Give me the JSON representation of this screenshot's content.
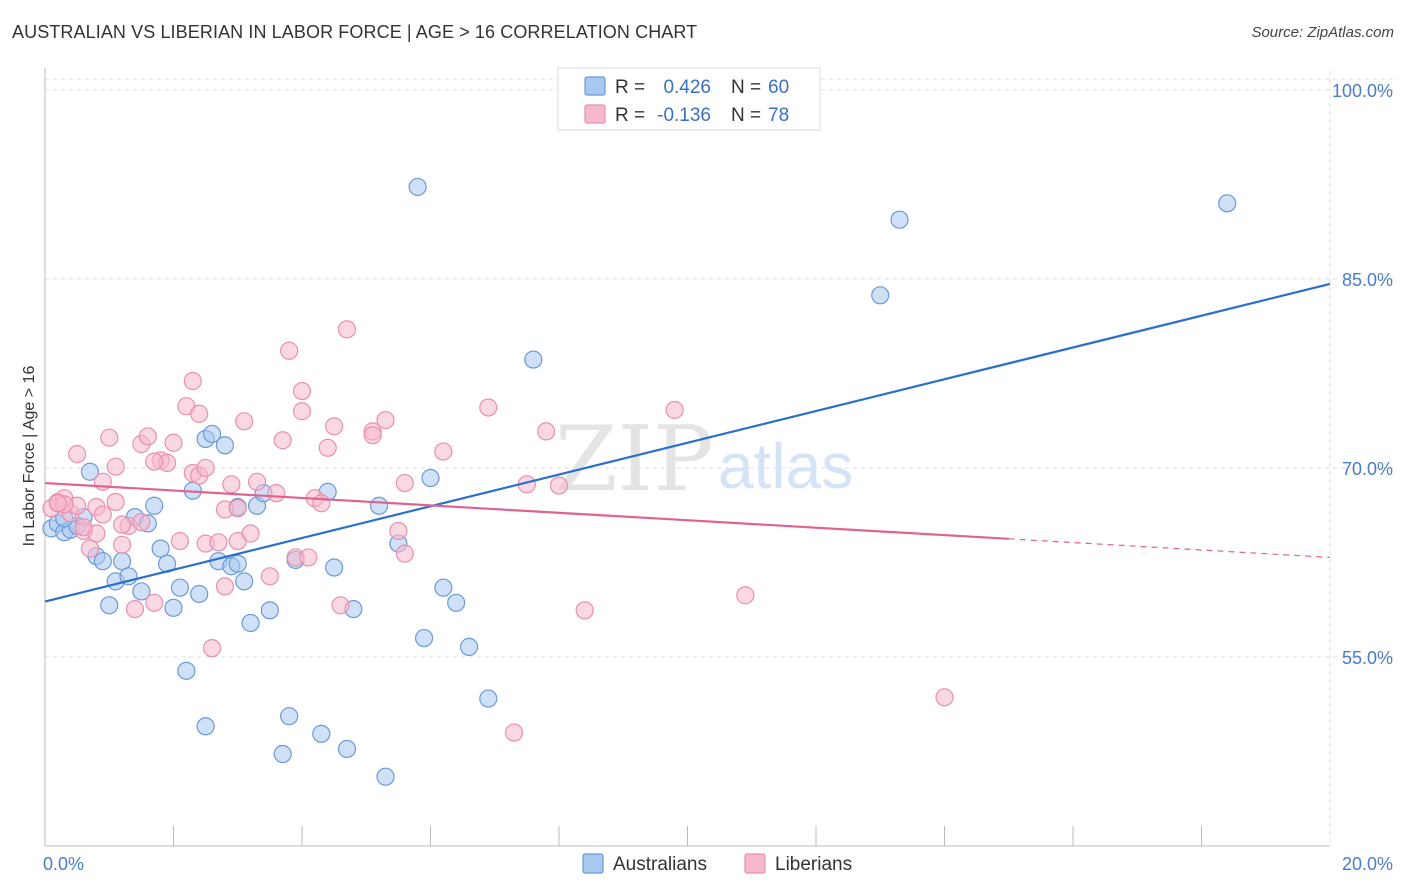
{
  "title": "AUSTRALIAN VS LIBERIAN IN LABOR FORCE | AGE > 16 CORRELATION CHART",
  "source": "Source: ZipAtlas.com",
  "watermark": {
    "zip": "ZIP",
    "atlas": "atlas"
  },
  "colors": {
    "blue_fill": "#a9c8f0",
    "blue_stroke": "#6a9ad8",
    "blue_line": "#2a6fcc",
    "pink_fill": "#f6b8cc",
    "pink_stroke": "#e890ae",
    "pink_line": "#e0628e",
    "grid": "#dddddd",
    "tick_text": "#4a7cc8"
  },
  "legend": {
    "rows": [
      {
        "r_label": "R =",
        "r_value": "0.426",
        "n_label": "N =",
        "n_value": "60",
        "series": "blue"
      },
      {
        "r_label": "R =",
        "r_value": "-0.136",
        "n_label": "N =",
        "n_value": "78",
        "series": "pink"
      }
    ]
  },
  "bottom_legend": [
    {
      "label": "Australians",
      "series": "blue"
    },
    {
      "label": "Liberians",
      "series": "pink"
    }
  ],
  "chart_data": {
    "type": "scatter",
    "title": "AUSTRALIAN VS LIBERIAN IN LABOR FORCE | AGE > 16 CORRELATION CHART",
    "xlabel": "",
    "ylabel": "In Labor Force | Age > 16",
    "xlim": [
      0,
      20
    ],
    "ylim": [
      40,
      101.5
    ],
    "x_tick_labels": [
      {
        "value": 0,
        "label": "0.0%"
      },
      {
        "value": 20,
        "label": "20.0%"
      }
    ],
    "y_tick_labels": [
      {
        "value": 100,
        "label": "100.0%"
      },
      {
        "value": 85,
        "label": "85.0%"
      },
      {
        "value": 70,
        "label": "70.0%"
      },
      {
        "value": 55,
        "label": "55.0%"
      }
    ],
    "x_minor_ticks": [
      2,
      4,
      6,
      8,
      10,
      12,
      14,
      16,
      18
    ],
    "series": [
      {
        "name": "Australians",
        "color": "blue",
        "trend": {
          "x0": 0,
          "y0": 59.4,
          "x1": 20,
          "y1": 84.6,
          "dashed_from": null
        },
        "points": [
          [
            0.1,
            65.2
          ],
          [
            0.2,
            65.6
          ],
          [
            0.3,
            64.9
          ],
          [
            0.4,
            65.1
          ],
          [
            0.5,
            65.4
          ],
          [
            0.6,
            66.1
          ],
          [
            0.7,
            69.7
          ],
          [
            0.8,
            63.0
          ],
          [
            0.9,
            62.6
          ],
          [
            1.0,
            59.1
          ],
          [
            1.1,
            61.0
          ],
          [
            1.2,
            62.6
          ],
          [
            1.3,
            61.4
          ],
          [
            1.4,
            66.1
          ],
          [
            1.5,
            60.2
          ],
          [
            1.6,
            65.6
          ],
          [
            1.7,
            67.0
          ],
          [
            1.8,
            63.6
          ],
          [
            1.9,
            62.4
          ],
          [
            2.0,
            58.9
          ],
          [
            2.1,
            60.5
          ],
          [
            2.2,
            53.9
          ],
          [
            2.3,
            68.2
          ],
          [
            2.4,
            60.0
          ],
          [
            2.5,
            49.5
          ],
          [
            2.5,
            72.3
          ],
          [
            2.6,
            72.7
          ],
          [
            2.7,
            62.6
          ],
          [
            2.8,
            71.8
          ],
          [
            2.9,
            62.2
          ],
          [
            3.0,
            66.9
          ],
          [
            3.0,
            62.4
          ],
          [
            3.1,
            61.0
          ],
          [
            3.2,
            57.7
          ],
          [
            3.3,
            67.0
          ],
          [
            3.4,
            68.0
          ],
          [
            3.5,
            58.7
          ],
          [
            3.7,
            47.3
          ],
          [
            3.8,
            50.3
          ],
          [
            3.9,
            62.7
          ],
          [
            4.3,
            48.9
          ],
          [
            4.4,
            68.1
          ],
          [
            4.5,
            62.1
          ],
          [
            4.7,
            47.7
          ],
          [
            4.8,
            58.8
          ],
          [
            5.2,
            67.0
          ],
          [
            5.3,
            45.5
          ],
          [
            5.5,
            64.0
          ],
          [
            5.8,
            92.3
          ],
          [
            5.9,
            56.5
          ],
          [
            6.0,
            69.2
          ],
          [
            6.2,
            60.5
          ],
          [
            6.4,
            59.3
          ],
          [
            6.6,
            55.8
          ],
          [
            6.9,
            51.7
          ],
          [
            7.6,
            78.6
          ],
          [
            13.0,
            83.7
          ],
          [
            13.3,
            89.7
          ],
          [
            18.4,
            91.0
          ],
          [
            0.3,
            66.0
          ]
        ]
      },
      {
        "name": "Liberians",
        "color": "pink",
        "trend": {
          "x0": 0,
          "y0": 68.8,
          "x1": 20,
          "y1": 62.9,
          "dashed_from": 15.0
        },
        "points": [
          [
            0.1,
            66.8
          ],
          [
            0.2,
            67.3
          ],
          [
            0.3,
            67.6
          ],
          [
            0.4,
            66.4
          ],
          [
            0.5,
            67.0
          ],
          [
            0.5,
            71.1
          ],
          [
            0.6,
            65.0
          ],
          [
            0.7,
            63.6
          ],
          [
            0.8,
            66.9
          ],
          [
            0.8,
            64.8
          ],
          [
            0.9,
            68.9
          ],
          [
            1.0,
            72.4
          ],
          [
            1.1,
            70.1
          ],
          [
            1.2,
            63.9
          ],
          [
            1.3,
            65.4
          ],
          [
            1.4,
            58.8
          ],
          [
            1.5,
            65.7
          ],
          [
            1.5,
            71.9
          ],
          [
            1.6,
            72.5
          ],
          [
            1.7,
            59.3
          ],
          [
            1.8,
            70.6
          ],
          [
            1.9,
            70.4
          ],
          [
            2.0,
            72.0
          ],
          [
            2.1,
            64.2
          ],
          [
            2.2,
            74.9
          ],
          [
            2.3,
            69.6
          ],
          [
            2.3,
            76.9
          ],
          [
            2.4,
            69.4
          ],
          [
            2.4,
            74.3
          ],
          [
            2.5,
            70.0
          ],
          [
            2.5,
            64.0
          ],
          [
            2.6,
            55.7
          ],
          [
            2.8,
            66.7
          ],
          [
            2.8,
            60.6
          ],
          [
            3.0,
            66.8
          ],
          [
            3.0,
            64.2
          ],
          [
            3.1,
            73.7
          ],
          [
            3.2,
            64.8
          ],
          [
            3.3,
            68.9
          ],
          [
            3.5,
            61.4
          ],
          [
            3.7,
            72.2
          ],
          [
            3.8,
            79.3
          ],
          [
            3.9,
            62.9
          ],
          [
            4.0,
            74.5
          ],
          [
            4.0,
            76.1
          ],
          [
            4.2,
            67.6
          ],
          [
            4.3,
            67.2
          ],
          [
            4.4,
            71.6
          ],
          [
            4.5,
            73.3
          ],
          [
            4.6,
            59.1
          ],
          [
            4.7,
            81.0
          ],
          [
            5.1,
            72.9
          ],
          [
            5.1,
            72.6
          ],
          [
            5.5,
            65.0
          ],
          [
            5.6,
            63.2
          ],
          [
            5.6,
            68.8
          ],
          [
            6.2,
            71.3
          ],
          [
            6.9,
            74.8
          ],
          [
            7.3,
            49.0
          ],
          [
            7.5,
            68.7
          ],
          [
            7.8,
            72.9
          ],
          [
            8.0,
            68.6
          ],
          [
            8.4,
            58.7
          ],
          [
            9.8,
            74.6
          ],
          [
            10.9,
            59.9
          ],
          [
            14.0,
            51.8
          ],
          [
            0.3,
            67.1
          ],
          [
            0.6,
            65.3
          ],
          [
            1.2,
            65.5
          ],
          [
            2.9,
            68.7
          ],
          [
            0.2,
            67.2
          ],
          [
            1.1,
            67.3
          ],
          [
            2.7,
            64.1
          ],
          [
            3.6,
            68.0
          ],
          [
            4.1,
            62.9
          ],
          [
            5.3,
            73.8
          ],
          [
            0.9,
            66.3
          ],
          [
            1.7,
            70.5
          ]
        ]
      }
    ]
  }
}
